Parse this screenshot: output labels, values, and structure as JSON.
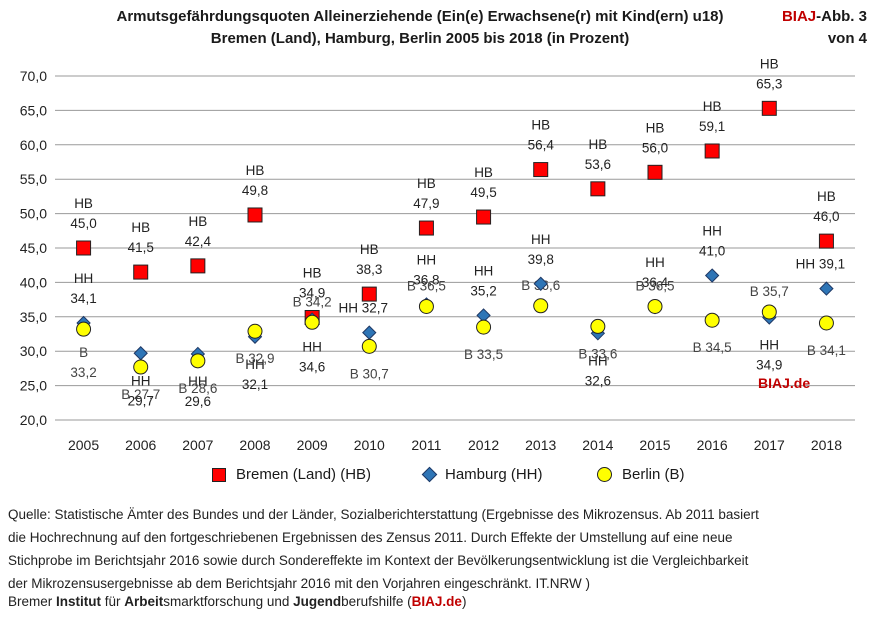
{
  "header": {
    "title_line1": "Armutsgefährdungsquoten Alleinerziehende (Ein(e) Erwachsene(r) mit Kind(ern) u18)",
    "title_line2": "Bremen (Land), Hamburg, Berlin 2005 bis 2018 (in Prozent)",
    "badge_brand": "BIAJ",
    "badge_rest": "-Abb. 3",
    "badge_line2": "von 4"
  },
  "colors": {
    "hb": "#ff0000",
    "hh": "#2e75b6",
    "b": "#ffff00",
    "brand": "#c00000"
  },
  "chart_data": {
    "type": "scatter",
    "title": "Armutsgefährdungsquoten Alleinerziehende (Ein(e) Erwachsene(r) mit Kind(ern) u18) Bremen (Land), Hamburg, Berlin 2005 bis 2018 (in Prozent)",
    "xlabel": "",
    "ylabel": "",
    "ylim": [
      20,
      70
    ],
    "yticks": [
      "20,0",
      "25,0",
      "30,0",
      "35,0",
      "40,0",
      "45,0",
      "50,0",
      "55,0",
      "60,0",
      "65,0",
      "70,0"
    ],
    "categories": [
      "2005",
      "2006",
      "2007",
      "2008",
      "2009",
      "2010",
      "2011",
      "2012",
      "2013",
      "2014",
      "2015",
      "2016",
      "2017",
      "2018"
    ],
    "series": [
      {
        "name": "Bremen (Land) (HB)",
        "key": "hb",
        "marker": "square",
        "values": [
          45.0,
          41.5,
          42.4,
          49.8,
          34.9,
          38.3,
          47.9,
          49.5,
          56.4,
          53.6,
          56.0,
          59.1,
          65.3,
          46.0
        ],
        "labels": [
          {
            "kind": "stack",
            "prefix": "HB",
            "value": "45,0"
          },
          {
            "kind": "stack",
            "prefix": "HB",
            "value": "41,5"
          },
          {
            "kind": "stack",
            "prefix": "HB",
            "value": "42,4"
          },
          {
            "kind": "stack",
            "prefix": "HB",
            "value": "49,8"
          },
          {
            "kind": "stack",
            "prefix": "HB",
            "value": "34,9"
          },
          {
            "kind": "stack",
            "prefix": "HB",
            "value": "38,3"
          },
          {
            "kind": "stack",
            "prefix": "HB",
            "value": "47,9"
          },
          {
            "kind": "stack",
            "prefix": "HB",
            "value": "49,5"
          },
          {
            "kind": "stack",
            "prefix": "HB",
            "value": "56,4"
          },
          {
            "kind": "stack",
            "prefix": "HB",
            "value": "53,6"
          },
          {
            "kind": "stack",
            "prefix": "HB",
            "value": "56,0"
          },
          {
            "kind": "stack",
            "prefix": "HB",
            "value": "59,1"
          },
          {
            "kind": "stack",
            "prefix": "HB",
            "value": "65,3"
          },
          {
            "kind": "stack",
            "prefix": "HB",
            "value": "46,0"
          }
        ]
      },
      {
        "name": "Hamburg (HH)",
        "key": "hh",
        "marker": "diamond",
        "values": [
          34.1,
          29.7,
          29.6,
          32.1,
          34.6,
          32.7,
          36.8,
          35.2,
          39.8,
          32.6,
          36.4,
          41.0,
          34.9,
          39.1
        ],
        "labels": [
          {
            "kind": "stack",
            "prefix": "HH",
            "value": "34,1"
          },
          {
            "kind": "stack",
            "prefix": "HH",
            "value": "29,7"
          },
          {
            "kind": "stack",
            "prefix": "HH",
            "value": "29,6"
          },
          {
            "kind": "stack",
            "prefix": "HH",
            "value": "32,1"
          },
          {
            "kind": "stack",
            "prefix": "HH",
            "value": "34,6"
          },
          {
            "kind": "inline",
            "prefix": "HH",
            "value": "32,7"
          },
          {
            "kind": "stack",
            "prefix": "HH",
            "value": "36,8"
          },
          {
            "kind": "stack",
            "prefix": "HH",
            "value": "35,2"
          },
          {
            "kind": "stack",
            "prefix": "HH",
            "value": "39,8"
          },
          {
            "kind": "stack",
            "prefix": "HH",
            "value": "32,6"
          },
          {
            "kind": "stack",
            "prefix": "HH",
            "value": "36,4"
          },
          {
            "kind": "stack",
            "prefix": "HH",
            "value": "41,0"
          },
          {
            "kind": "stack",
            "prefix": "HH",
            "value": "34,9"
          },
          {
            "kind": "inline",
            "prefix": "HH",
            "value": "39,1"
          }
        ]
      },
      {
        "name": "Berlin (B)",
        "key": "b",
        "marker": "circle",
        "values": [
          33.2,
          27.7,
          28.6,
          32.9,
          34.2,
          30.7,
          36.5,
          33.5,
          36.6,
          33.6,
          36.5,
          34.5,
          35.7,
          34.1
        ],
        "labels": [
          {
            "kind": "stack",
            "prefix": "B",
            "value": "33,2"
          },
          {
            "kind": "inline",
            "prefix": "B",
            "value": "27,7"
          },
          {
            "kind": "inline",
            "prefix": "B",
            "value": "28,6"
          },
          {
            "kind": "inline",
            "prefix": "B",
            "value": "32,9"
          },
          {
            "kind": "inline",
            "prefix": "B",
            "value": "34,2"
          },
          {
            "kind": "inline",
            "prefix": "B",
            "value": "30,7"
          },
          {
            "kind": "inline",
            "prefix": "B",
            "value": "36,5"
          },
          {
            "kind": "inline",
            "prefix": "B",
            "value": "33,5"
          },
          {
            "kind": "inline",
            "prefix": "B",
            "value": "36,6"
          },
          {
            "kind": "inline",
            "prefix": "B",
            "value": "33,6"
          },
          {
            "kind": "inline",
            "prefix": "B",
            "value": "36,5"
          },
          {
            "kind": "inline",
            "prefix": "B",
            "value": "34,5"
          },
          {
            "kind": "inline",
            "prefix": "B",
            "value": "35,7"
          },
          {
            "kind": "inline",
            "prefix": "B",
            "value": "34,1"
          }
        ]
      }
    ],
    "watermark": "BIAJ.de",
    "grid": true,
    "legend_position": "bottom"
  },
  "legend": {
    "hb": "Bremen (Land) (HB)",
    "hh": "Hamburg (HH)",
    "b": "Berlin (B)"
  },
  "footer": {
    "source_line1": "Quelle: Statistische Ämter des Bundes und der Länder, Sozialberichterstattung (Ergebnisse des  Mikrozensus. Ab 2011 basiert",
    "source_line2": "die Hochrechnung auf den fortgeschriebenen Ergebnissen des Zensus 2011. Durch Effekte der Umstellung auf eine neue",
    "source_line3": "Stichprobe im Berichtsjahr 2016 sowie durch Sondereffekte im Kontext der Bevölkerungsentwicklung ist die Vergleichbarkeit",
    "source_line4": "der Mikrozensusergebnisse ab dem Berichtsjahr 2016 mit den Vorjahren eingeschränkt. IT.NRW )",
    "credit_p1": "Bremer ",
    "credit_b1": "Institut",
    "credit_p2": " für ",
    "credit_b2": "Arbeit",
    "credit_p3": "smarktforschung und ",
    "credit_b3": "Jugend",
    "credit_p4": "berufshilfe (",
    "credit_link": "BIAJ.de",
    "credit_p5": ")"
  }
}
